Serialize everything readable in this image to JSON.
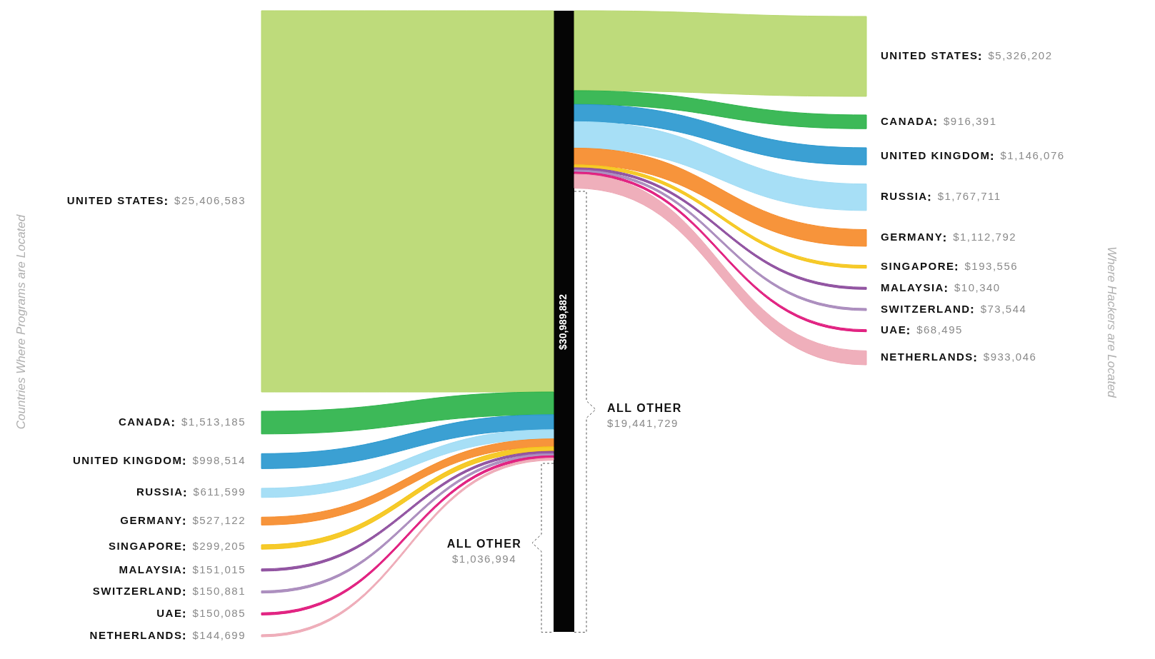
{
  "chart_data": {
    "type": "other",
    "ylabel": "Countries Where Programs are Located",
    "y2label": "Where Hackers are Located",
    "categories": [
      "UNITED STATES",
      "CANADA",
      "UNITED KINGDOM",
      "RUSSIA",
      "GERMANY",
      "SINGAPORE",
      "MALAYSIA",
      "SWITZERLAND",
      "UAE",
      "NETHERLANDS",
      "ALL OTHER"
    ],
    "colors": [
      "#b8d870",
      "#2db34a",
      "#2a98cf",
      "#a0dcf5",
      "#f68b2a",
      "#f5c518",
      "#8b4a9c",
      "#a788bb",
      "#e0157a",
      "#eea8b5",
      null
    ],
    "series": [
      {
        "values": [
          25406583,
          1513185,
          998514,
          611599,
          527122,
          299205,
          151015,
          150881,
          150085,
          144699,
          1036994
        ],
        "value_labels": [
          "$25,406,583",
          "$1,513,185",
          "$998,514",
          "$611,599",
          "$527,122",
          "$299,205",
          "$151,015",
          "$150,881",
          "$150,085",
          "$144,699",
          "$1,036,994"
        ]
      },
      {
        "values": [
          5326202,
          916391,
          1146076,
          1767711,
          1112792,
          193556,
          10340,
          73544,
          68495,
          933046,
          19441729
        ],
        "value_labels": [
          "$5,326,202",
          "$916,391",
          "$1,146,076",
          "$1,767,711",
          "$1,112,792",
          "$193,556",
          "$10,340",
          "$73,544",
          "$68,495",
          "$933,046",
          "$19,441,729"
        ]
      }
    ],
    "annotations": [
      "$30,989,882"
    ]
  }
}
